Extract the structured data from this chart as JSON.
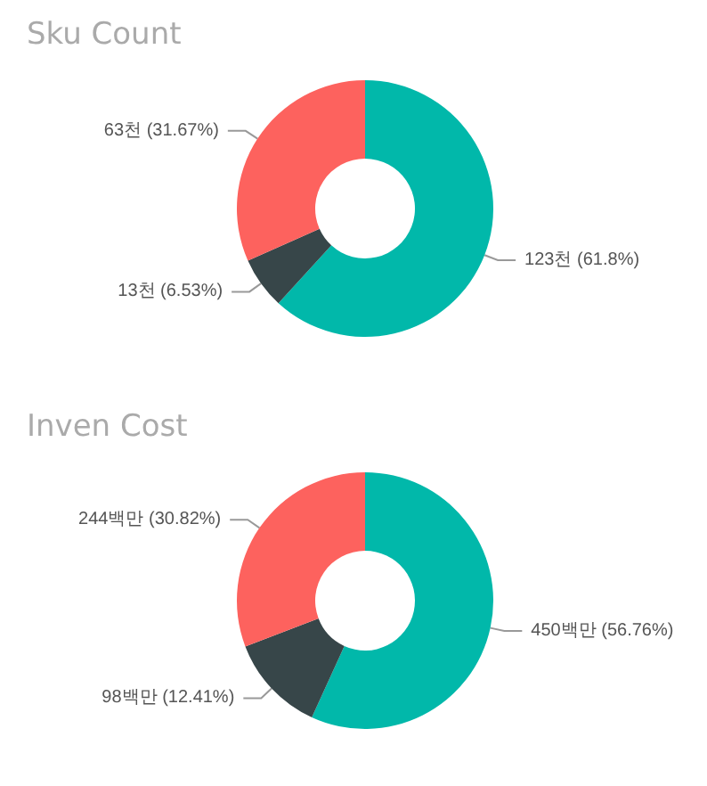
{
  "chart_data": [
    {
      "type": "donut",
      "title": "Sku Count",
      "categories": [
        null,
        null,
        null
      ],
      "values": [
        123,
        13,
        63
      ],
      "colors": [
        "#01b8aa",
        "#374649",
        "#fd625e"
      ],
      "value_labels": [
        "123천 (61.8%)",
        "13천 (6.53%)",
        "63천 (31.67%)"
      ]
    },
    {
      "type": "donut",
      "title": "Inven Cost",
      "categories": [
        null,
        null,
        null
      ],
      "values": [
        450,
        98,
        244
      ],
      "colors": [
        "#01b8aa",
        "#374649",
        "#fd625e"
      ],
      "value_labels": [
        "450백만 (56.76%)",
        "98백만 (12.41%)",
        "244백만 (30.82%)"
      ]
    }
  ]
}
